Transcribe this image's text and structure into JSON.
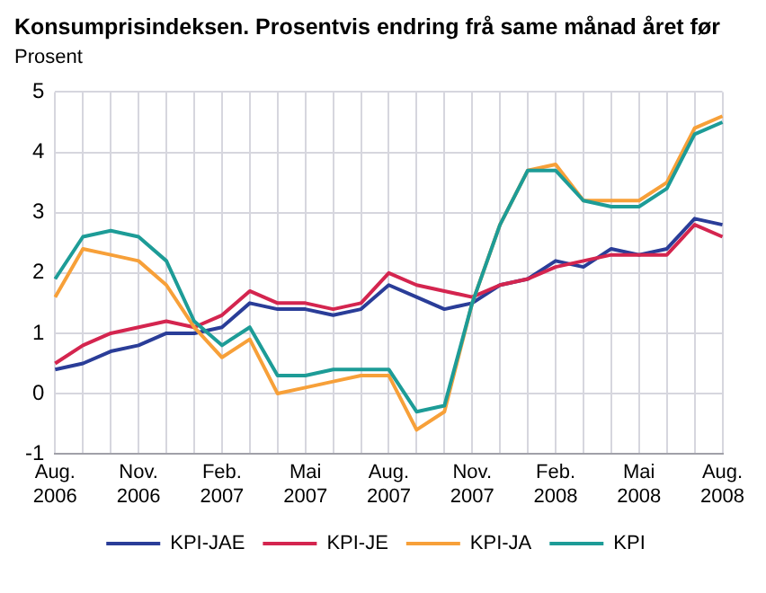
{
  "chart_data": {
    "type": "line",
    "title": "Konsumprisindeksen. Prosentvis endring frå same månad året før",
    "ylabel": "Prosent",
    "categories": [
      "Aug. 2006",
      null,
      null,
      "Nov. 2006",
      null,
      null,
      "Feb. 2007",
      null,
      null,
      "Mai 2007",
      null,
      null,
      "Aug. 2007",
      null,
      null,
      "Nov. 2007",
      null,
      null,
      "Feb. 2008",
      null,
      null,
      "Mai 2008",
      null,
      null,
      "Aug. 2008"
    ],
    "series": [
      {
        "name": "KPI-JAE",
        "color": "#2a3d98",
        "values": [
          0.4,
          0.5,
          0.7,
          0.8,
          1.0,
          1.0,
          1.1,
          1.5,
          1.4,
          1.4,
          1.3,
          1.4,
          1.8,
          1.6,
          1.4,
          1.5,
          1.8,
          1.9,
          2.2,
          2.1,
          2.4,
          2.3,
          2.4,
          2.9,
          2.8
        ]
      },
      {
        "name": "KPI-JE",
        "color": "#d4254f",
        "values": [
          0.5,
          0.8,
          1.0,
          1.1,
          1.2,
          1.1,
          1.3,
          1.7,
          1.5,
          1.5,
          1.4,
          1.5,
          2.0,
          1.8,
          1.7,
          1.6,
          1.8,
          1.9,
          2.1,
          2.2,
          2.3,
          2.3,
          2.3,
          2.8,
          2.6
        ]
      },
      {
        "name": "KPI-JA",
        "color": "#f7a039",
        "values": [
          1.6,
          2.4,
          2.3,
          2.2,
          1.8,
          1.1,
          0.6,
          0.9,
          0.0,
          0.1,
          0.2,
          0.3,
          0.3,
          -0.6,
          -0.3,
          1.5,
          2.8,
          3.7,
          3.8,
          3.2,
          3.2,
          3.2,
          3.5,
          4.4,
          4.6
        ]
      },
      {
        "name": "KPI",
        "color": "#1d9c97",
        "values": [
          1.9,
          2.6,
          2.7,
          2.6,
          2.2,
          1.2,
          0.8,
          1.1,
          0.3,
          0.3,
          0.4,
          0.4,
          0.4,
          -0.3,
          -0.2,
          1.5,
          2.8,
          3.7,
          3.7,
          3.2,
          3.1,
          3.1,
          3.4,
          4.3,
          4.5
        ]
      }
    ],
    "ylim": [
      -1,
      5
    ],
    "yticks": [
      -1,
      0,
      1,
      2,
      3,
      4,
      5
    ],
    "grid": true,
    "legend": "bottom",
    "marker": "none",
    "line_style": "solid"
  }
}
